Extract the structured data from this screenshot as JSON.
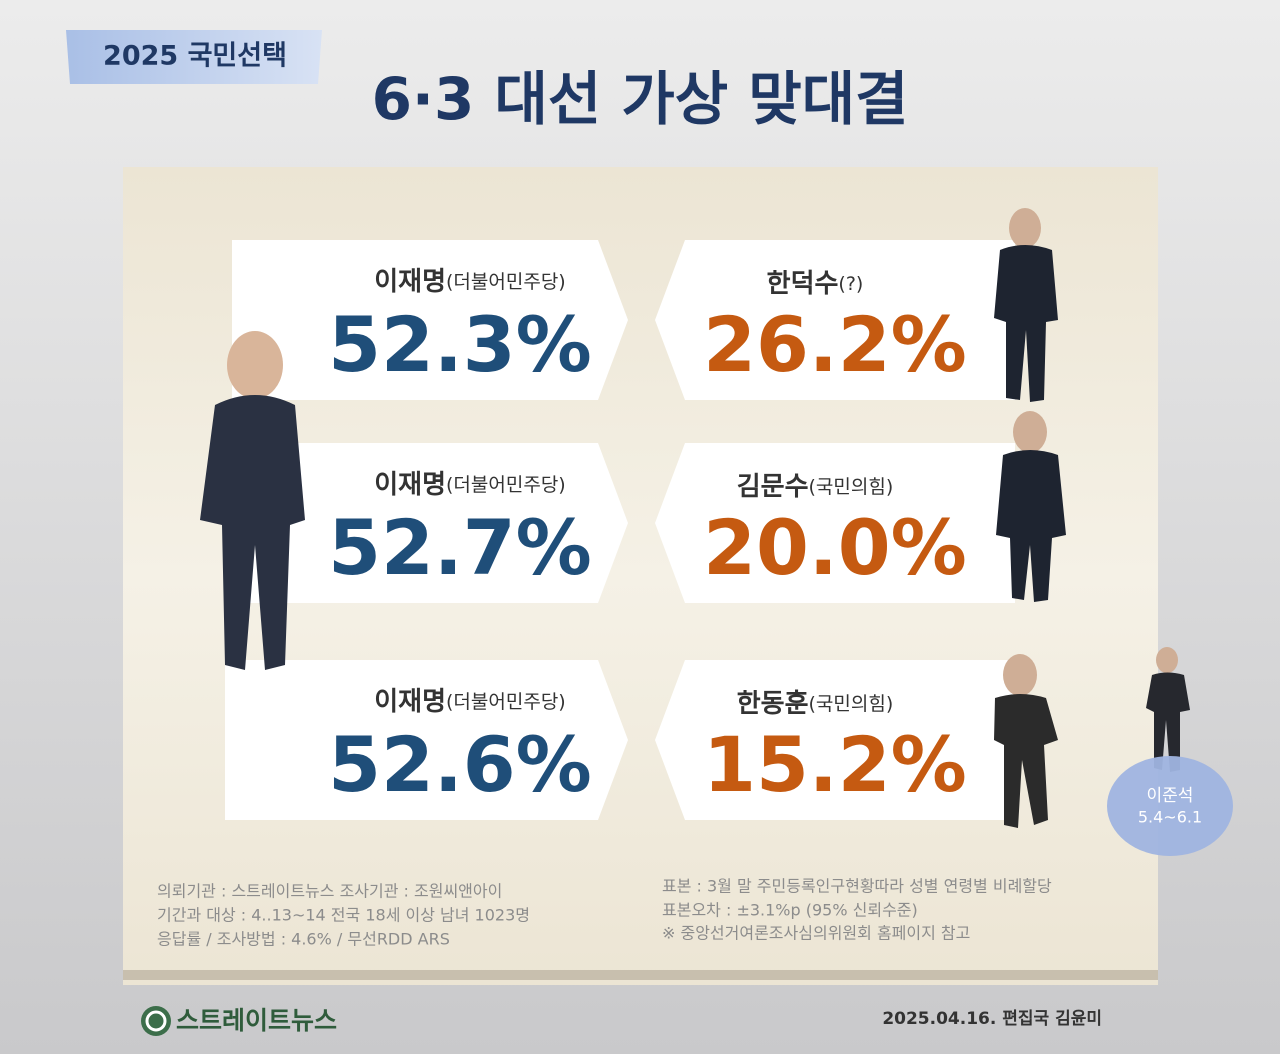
{
  "header": {
    "badge": "2025  국민선택",
    "title": "6·3 대선 가상 맞대결"
  },
  "matchups": [
    {
      "left": {
        "name": "이재명",
        "party": "(더불어민주당)",
        "share": "52.3%"
      },
      "right": {
        "name": "한덕수",
        "party": "(?)",
        "share": "26.2%"
      }
    },
    {
      "left": {
        "name": "이재명",
        "party": "(더불어민주당)",
        "share": "52.7%"
      },
      "right": {
        "name": "김문수",
        "party": "(국민의힘)",
        "share": "20.0%"
      }
    },
    {
      "left": {
        "name": "이재명",
        "party": "(더불어민주당)",
        "share": "52.6%"
      },
      "right": {
        "name": "한동훈",
        "party": "(국민의힘)",
        "share": "15.2%"
      }
    }
  ],
  "bubble": {
    "name": "이준석",
    "period": "5.4~6.1"
  },
  "notes": {
    "left": [
      "의뢰기관 : 스트레이트뉴스   조사기관 : 조원씨앤아이",
      "기간과 대상 : 4..13~14 전국 18세 이상 남녀 1023명",
      "응답률 / 조사방법 : 4.6% / 무선RDD ARS"
    ],
    "right": [
      "표본 : 3월 말 주민등록인구현황따라 성별 연령별 비례할당",
      "표본오차 : ±3.1%p (95% 신뢰수준)",
      "※ 중앙선거여론조사심의위원회 홈페이지 참고"
    ]
  },
  "footer": {
    "logo": "스트레이트뉴스",
    "credit": "2025.04.16. 편집국 김윤미"
  }
}
